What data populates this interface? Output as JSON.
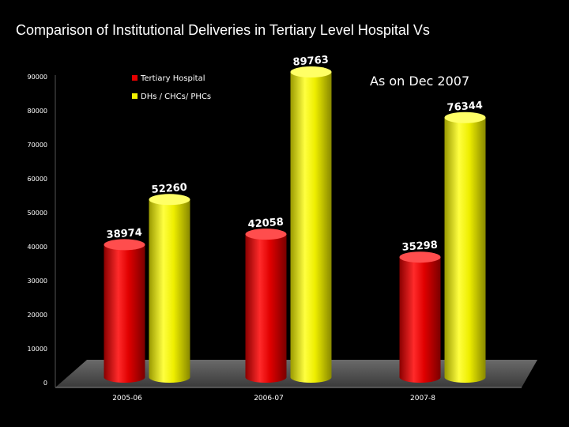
{
  "slide_title": "Comparison of Institutional Deliveries in Tertiary Level Hospital Vs",
  "chart_data": {
    "type": "bar",
    "title": "Comparison of Institutional Deliveries in Tertiary Level Hospital Vs",
    "annotation": "As on Dec 2007",
    "categories": [
      "2005-06",
      "2006-07",
      "2007-8"
    ],
    "series": [
      {
        "name": "Tertiary Hospital",
        "color": "#e60000",
        "values": [
          38974,
          42058,
          35298
        ]
      },
      {
        "name": "DHs / CHCs/ PHCs",
        "color": "#f2f200",
        "values": [
          52260,
          89763,
          76344
        ]
      }
    ],
    "ylim": [
      0,
      90000
    ],
    "yticks": [
      0,
      10000,
      20000,
      30000,
      40000,
      50000,
      60000,
      70000,
      80000,
      90000
    ],
    "xlabel": "",
    "ylabel": "",
    "grid": false,
    "legend_position": "top-left"
  }
}
